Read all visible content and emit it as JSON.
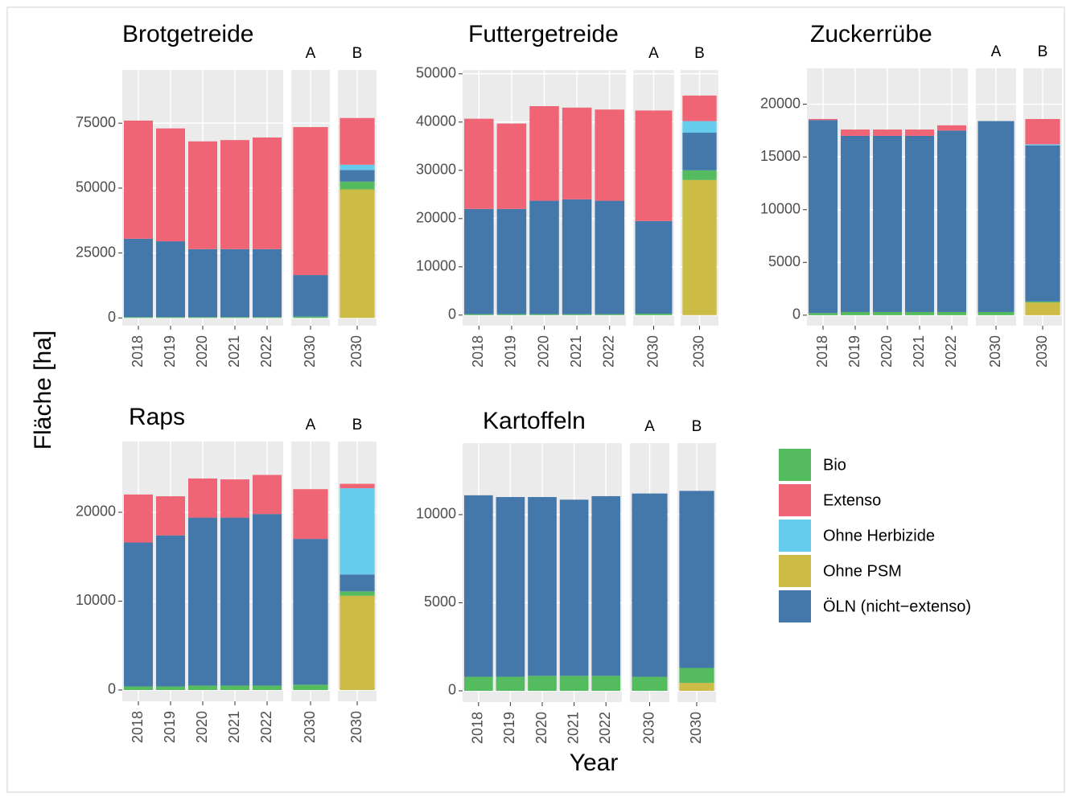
{
  "y_label": "Fläche [ha]",
  "x_label": "Year",
  "stack_order": [
    3,
    0,
    4,
    2,
    1
  ],
  "chart_data": [
    {
      "type": "bar",
      "title": "Brotgetreide",
      "panels": [
        {
          "categories": [
            "2018",
            "2019",
            "2020",
            "2021",
            "2022"
          ]
        },
        {
          "label": "A",
          "categories": [
            "2030"
          ]
        },
        {
          "label": "B",
          "categories": [
            "2030"
          ]
        }
      ],
      "series": [
        {
          "name": "Bio",
          "color": "#55bb5f",
          "values": [
            300,
            300,
            300,
            300,
            300,
            500,
            3000
          ]
        },
        {
          "name": "Extenso",
          "color": "#ef6575",
          "values": [
            45500,
            43500,
            41500,
            42000,
            43000,
            57000,
            18000
          ]
        },
        {
          "name": "Ohne Herbizide",
          "color": "#66ccee",
          "values": [
            0,
            0,
            0,
            0,
            0,
            0,
            2000
          ]
        },
        {
          "name": "Ohne PSM",
          "color": "#ccbb44",
          "values": [
            0,
            0,
            0,
            0,
            0,
            0,
            49500
          ]
        },
        {
          "name": "ÖLN (nicht−extenso)",
          "color": "#4477aa",
          "values": [
            30200,
            29200,
            26200,
            26200,
            26200,
            16000,
            4500
          ]
        }
      ],
      "ylim": [
        -3000,
        95500
      ],
      "yticks": [
        0,
        25000,
        50000,
        75000
      ],
      "grid": true
    },
    {
      "type": "bar",
      "title": "Futtergetreide",
      "panels": [
        {
          "categories": [
            "2018",
            "2019",
            "2020",
            "2021",
            "2022"
          ]
        },
        {
          "label": "A",
          "categories": [
            "2030"
          ]
        },
        {
          "label": "B",
          "categories": [
            "2030"
          ]
        }
      ],
      "series": [
        {
          "name": "Bio",
          "color": "#55bb5f",
          "values": [
            200,
            200,
            200,
            200,
            200,
            300,
            2000
          ]
        },
        {
          "name": "Extenso",
          "color": "#ef6575",
          "values": [
            18700,
            17700,
            19600,
            19000,
            18900,
            22900,
            5300
          ]
        },
        {
          "name": "Ohne Herbizide",
          "color": "#66ccee",
          "values": [
            0,
            0,
            0,
            0,
            0,
            0,
            2400
          ]
        },
        {
          "name": "Ohne PSM",
          "color": "#ccbb44",
          "values": [
            0,
            0,
            0,
            0,
            0,
            0,
            28000
          ]
        },
        {
          "name": "ÖLN (nicht−extenso)",
          "color": "#4477aa",
          "values": [
            21800,
            21800,
            23500,
            23800,
            23500,
            19200,
            7800
          ]
        }
      ],
      "ylim": [
        -2200,
        50800
      ],
      "yticks": [
        0,
        10000,
        20000,
        30000,
        40000,
        50000
      ],
      "grid": true
    },
    {
      "type": "bar",
      "title": "Zuckerrübe",
      "panels": [
        {
          "categories": [
            "2018",
            "2019",
            "2020",
            "2021",
            "2022"
          ]
        },
        {
          "label": "A",
          "categories": [
            "2030"
          ]
        },
        {
          "label": "B",
          "categories": [
            "2030"
          ]
        }
      ],
      "series": [
        {
          "name": "Bio",
          "color": "#55bb5f",
          "values": [
            200,
            300,
            300,
            300,
            300,
            300,
            100
          ]
        },
        {
          "name": "Extenso",
          "color": "#ef6575",
          "values": [
            100,
            600,
            600,
            600,
            500,
            0,
            2400
          ]
        },
        {
          "name": "Ohne Herbizide",
          "color": "#66ccee",
          "values": [
            0,
            0,
            0,
            0,
            0,
            0,
            100
          ]
        },
        {
          "name": "Ohne PSM",
          "color": "#ccbb44",
          "values": [
            0,
            0,
            0,
            0,
            0,
            0,
            1200
          ]
        },
        {
          "name": "ÖLN (nicht−extenso)",
          "color": "#4477aa",
          "values": [
            18300,
            16700,
            16700,
            16700,
            17200,
            18100,
            14800
          ]
        }
      ],
      "ylim": [
        -1000,
        23400
      ],
      "yticks": [
        0,
        5000,
        10000,
        15000,
        20000
      ],
      "grid": true
    },
    {
      "type": "bar",
      "title": "Raps",
      "panels": [
        {
          "categories": [
            "2018",
            "2019",
            "2020",
            "2021",
            "2022"
          ]
        },
        {
          "label": "A",
          "categories": [
            "2030"
          ]
        },
        {
          "label": "B",
          "categories": [
            "2030"
          ]
        }
      ],
      "series": [
        {
          "name": "Bio",
          "color": "#55bb5f",
          "values": [
            400,
            400,
            500,
            500,
            500,
            600,
            500
          ]
        },
        {
          "name": "Extenso",
          "color": "#ef6575",
          "values": [
            5400,
            4400,
            4400,
            4300,
            4400,
            5600,
            500
          ]
        },
        {
          "name": "Ohne Herbizide",
          "color": "#66ccee",
          "values": [
            0,
            0,
            0,
            0,
            0,
            0,
            9700
          ]
        },
        {
          "name": "Ohne PSM",
          "color": "#ccbb44",
          "values": [
            0,
            0,
            0,
            0,
            0,
            0,
            10600
          ]
        },
        {
          "name": "ÖLN (nicht−extenso)",
          "color": "#4477aa",
          "values": [
            16200,
            17000,
            18900,
            18900,
            19300,
            16400,
            1900
          ]
        }
      ],
      "ylim": [
        -1270,
        27960
      ],
      "yticks": [
        0,
        10000,
        20000
      ],
      "grid": true
    },
    {
      "type": "bar",
      "title": "Kartoffeln",
      "panels": [
        {
          "categories": [
            "2018",
            "2019",
            "2020",
            "2021",
            "2022"
          ]
        },
        {
          "label": "A",
          "categories": [
            "2030"
          ]
        },
        {
          "label": "B",
          "categories": [
            "2030"
          ]
        }
      ],
      "series": [
        {
          "name": "Bio",
          "color": "#55bb5f",
          "values": [
            800,
            800,
            850,
            850,
            850,
            800,
            850
          ]
        },
        {
          "name": "Extenso",
          "color": "#ef6575",
          "values": [
            0,
            0,
            0,
            0,
            0,
            0,
            0
          ]
        },
        {
          "name": "Ohne Herbizide",
          "color": "#66ccee",
          "values": [
            0,
            0,
            0,
            0,
            0,
            0,
            0
          ]
        },
        {
          "name": "Ohne PSM",
          "color": "#ccbb44",
          "values": [
            0,
            0,
            0,
            0,
            0,
            0,
            450
          ]
        },
        {
          "name": "ÖLN (nicht−extenso)",
          "color": "#4477aa",
          "values": [
            10300,
            10200,
            10150,
            10000,
            10200,
            10400,
            10050
          ]
        }
      ],
      "ylim": [
        -640,
        14060
      ],
      "yticks": [
        0,
        5000,
        10000
      ],
      "grid": true
    }
  ]
}
